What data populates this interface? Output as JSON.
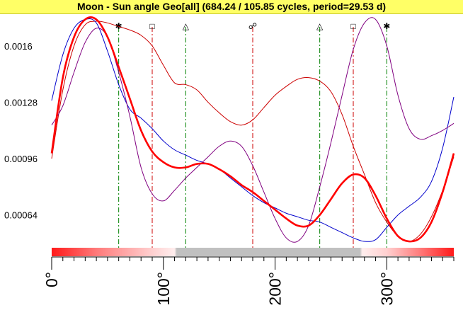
{
  "title": "Moon - Sun angle Geo[all]  (684.24 / 105.85 cycles, period=29.53 d)",
  "chart_data": {
    "type": "line",
    "title": "Moon - Sun angle Geo[all]  (684.24 / 105.85 cycles, period=29.53 d)",
    "xlabel": "",
    "ylabel": "",
    "xlim": [
      0,
      360
    ],
    "ylim": [
      0.00045,
      0.00178
    ],
    "y_ticks": [
      {
        "value": 0.0016,
        "label": "0.0016"
      },
      {
        "value": 0.00128,
        "label": "0.00128"
      },
      {
        "value": 0.00096,
        "label": "0.00096"
      },
      {
        "value": 0.00064,
        "label": "0.00064"
      }
    ],
    "x_ticks": [
      {
        "value": 0,
        "label": "0°"
      },
      {
        "value": 100,
        "label": "100°"
      },
      {
        "value": 200,
        "label": "200°"
      },
      {
        "value": 300,
        "label": "300°"
      }
    ],
    "aspects": [
      {
        "angle": 60,
        "glyph": "✱",
        "color": "#008000"
      },
      {
        "angle": 90,
        "glyph": "□",
        "color": "#cc0000"
      },
      {
        "angle": 120,
        "glyph": "△",
        "color": "#008000"
      },
      {
        "angle": 180,
        "glyph": "☍",
        "color": "#cc0000"
      },
      {
        "angle": 240,
        "glyph": "△",
        "color": "#008000"
      },
      {
        "angle": 270,
        "glyph": "□",
        "color": "#cc0000"
      },
      {
        "angle": 300,
        "glyph": "✱",
        "color": "#008000"
      }
    ],
    "series": [
      {
        "color": "#ff0000",
        "width": 2.6,
        "x": [
          0,
          10,
          20,
          30,
          40,
          50,
          60,
          70,
          80,
          90,
          100,
          110,
          120,
          130,
          140,
          150,
          160,
          170,
          180,
          190,
          200,
          210,
          220,
          230,
          240,
          250,
          260,
          270,
          280,
          290,
          300,
          310,
          320,
          330,
          340,
          350,
          360
        ],
        "y": [
          0.00099,
          0.00142,
          0.00165,
          0.00175,
          0.00175,
          0.00165,
          0.00148,
          0.0013,
          0.00112,
          0.001,
          0.00094,
          0.00091,
          0.00091,
          0.00093,
          0.00093,
          0.0009,
          0.00086,
          0.00081,
          0.00077,
          0.00072,
          0.00067,
          0.00062,
          0.00058,
          0.00058,
          0.00064,
          0.00073,
          0.00082,
          0.00087,
          0.00085,
          0.00075,
          0.00062,
          0.00052,
          0.00049,
          0.00051,
          0.0006,
          0.00077,
          0.00099
        ]
      },
      {
        "color": "#cc0000",
        "width": 1,
        "x": [
          0,
          10,
          20,
          30,
          40,
          50,
          60,
          70,
          80,
          90,
          100,
          110,
          120,
          130,
          140,
          150,
          160,
          170,
          180,
          190,
          200,
          210,
          220,
          230,
          240,
          250,
          260,
          270,
          280,
          290,
          300,
          310,
          320,
          330,
          340,
          350,
          360
        ],
        "y": [
          0.00096,
          0.00135,
          0.0016,
          0.00172,
          0.00174,
          0.00173,
          0.00171,
          0.00169,
          0.00166,
          0.0016,
          0.00149,
          0.00139,
          0.00138,
          0.00135,
          0.00128,
          0.00122,
          0.00117,
          0.00115,
          0.00118,
          0.00125,
          0.00132,
          0.00137,
          0.00141,
          0.00142,
          0.0014,
          0.00134,
          0.00121,
          0.00103,
          0.00087,
          0.00071,
          0.0006,
          0.00052,
          0.00049,
          0.00053,
          0.00063,
          0.00078,
          0.00097
        ]
      },
      {
        "color": "#0000cc",
        "width": 1,
        "x": [
          0,
          10,
          20,
          30,
          40,
          50,
          60,
          70,
          80,
          90,
          100,
          110,
          120,
          130,
          140,
          150,
          160,
          170,
          180,
          190,
          200,
          210,
          220,
          230,
          240,
          250,
          260,
          270,
          280,
          290,
          300,
          310,
          320,
          330,
          340,
          350,
          360
        ],
        "y": [
          0.00129,
          0.00155,
          0.0017,
          0.00175,
          0.00173,
          0.00157,
          0.00138,
          0.00124,
          0.00119,
          0.00113,
          0.00106,
          0.00101,
          0.00098,
          0.00095,
          0.00093,
          0.0009,
          0.00085,
          0.0008,
          0.00075,
          0.00071,
          0.00068,
          0.00065,
          0.00063,
          0.00061,
          0.0006,
          0.00057,
          0.00054,
          0.00051,
          0.00049,
          0.0005,
          0.00057,
          0.00064,
          0.00069,
          0.00074,
          0.00083,
          0.00102,
          0.00131
        ]
      },
      {
        "color": "#800080",
        "width": 1,
        "x": [
          0,
          10,
          20,
          30,
          40,
          50,
          60,
          70,
          80,
          90,
          100,
          110,
          120,
          130,
          140,
          150,
          160,
          170,
          180,
          190,
          200,
          210,
          220,
          230,
          240,
          250,
          260,
          270,
          280,
          290,
          300,
          310,
          320,
          330,
          340,
          350,
          360
        ],
        "y": [
          0.00115,
          0.00126,
          0.00145,
          0.00162,
          0.0017,
          0.00165,
          0.00145,
          0.0012,
          0.00091,
          0.00076,
          0.00072,
          0.00078,
          0.00085,
          0.00091,
          0.00097,
          0.00103,
          0.00106,
          0.00103,
          0.00092,
          0.00077,
          0.00062,
          0.00051,
          0.00049,
          0.00058,
          0.0008,
          0.00105,
          0.00132,
          0.00158,
          0.00173,
          0.00175,
          0.0016,
          0.00132,
          0.00113,
          0.00107,
          0.00109,
          0.00112,
          0.00116
        ]
      }
    ]
  },
  "gradient_bar": {
    "stops": [
      {
        "x": 0,
        "color": "#ff1a1a"
      },
      {
        "x": 40,
        "color": "#ff7a7a"
      },
      {
        "x": 90,
        "color": "#ffd0d0"
      },
      {
        "x": 110,
        "color": "#ffeeee"
      },
      {
        "x": 112,
        "color": "#c0c0c0"
      },
      {
        "x": 276,
        "color": "#c0c0c0"
      },
      {
        "x": 278,
        "color": "#ffeeee"
      },
      {
        "x": 300,
        "color": "#ffd0d0"
      },
      {
        "x": 330,
        "color": "#ff7a7a"
      },
      {
        "x": 360,
        "color": "#ff1a1a"
      }
    ]
  }
}
